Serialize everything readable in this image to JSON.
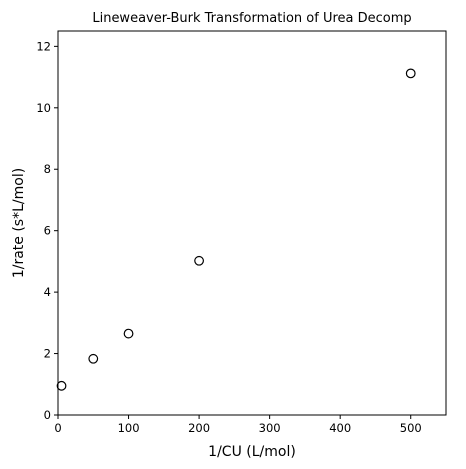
{
  "chart_data": {
    "type": "scatter",
    "title": "Lineweaver-Burk Transformation of Urea Decomp",
    "xlabel": "1/CU (L/mol)",
    "ylabel": "1/rate (s*L/mol)",
    "xlim": [
      0,
      550
    ],
    "ylim": [
      0,
      12.5
    ],
    "xticks": [
      0,
      100,
      200,
      300,
      400,
      500
    ],
    "yticks": [
      0,
      2,
      4,
      6,
      8,
      10,
      12
    ],
    "grid": false,
    "marker": "open-circle",
    "marker_color": "#000000",
    "series": [
      {
        "x": [
          5,
          50,
          100,
          200,
          500
        ],
        "y": [
          0.95,
          1.83,
          2.65,
          5.02,
          11.12
        ]
      }
    ]
  }
}
